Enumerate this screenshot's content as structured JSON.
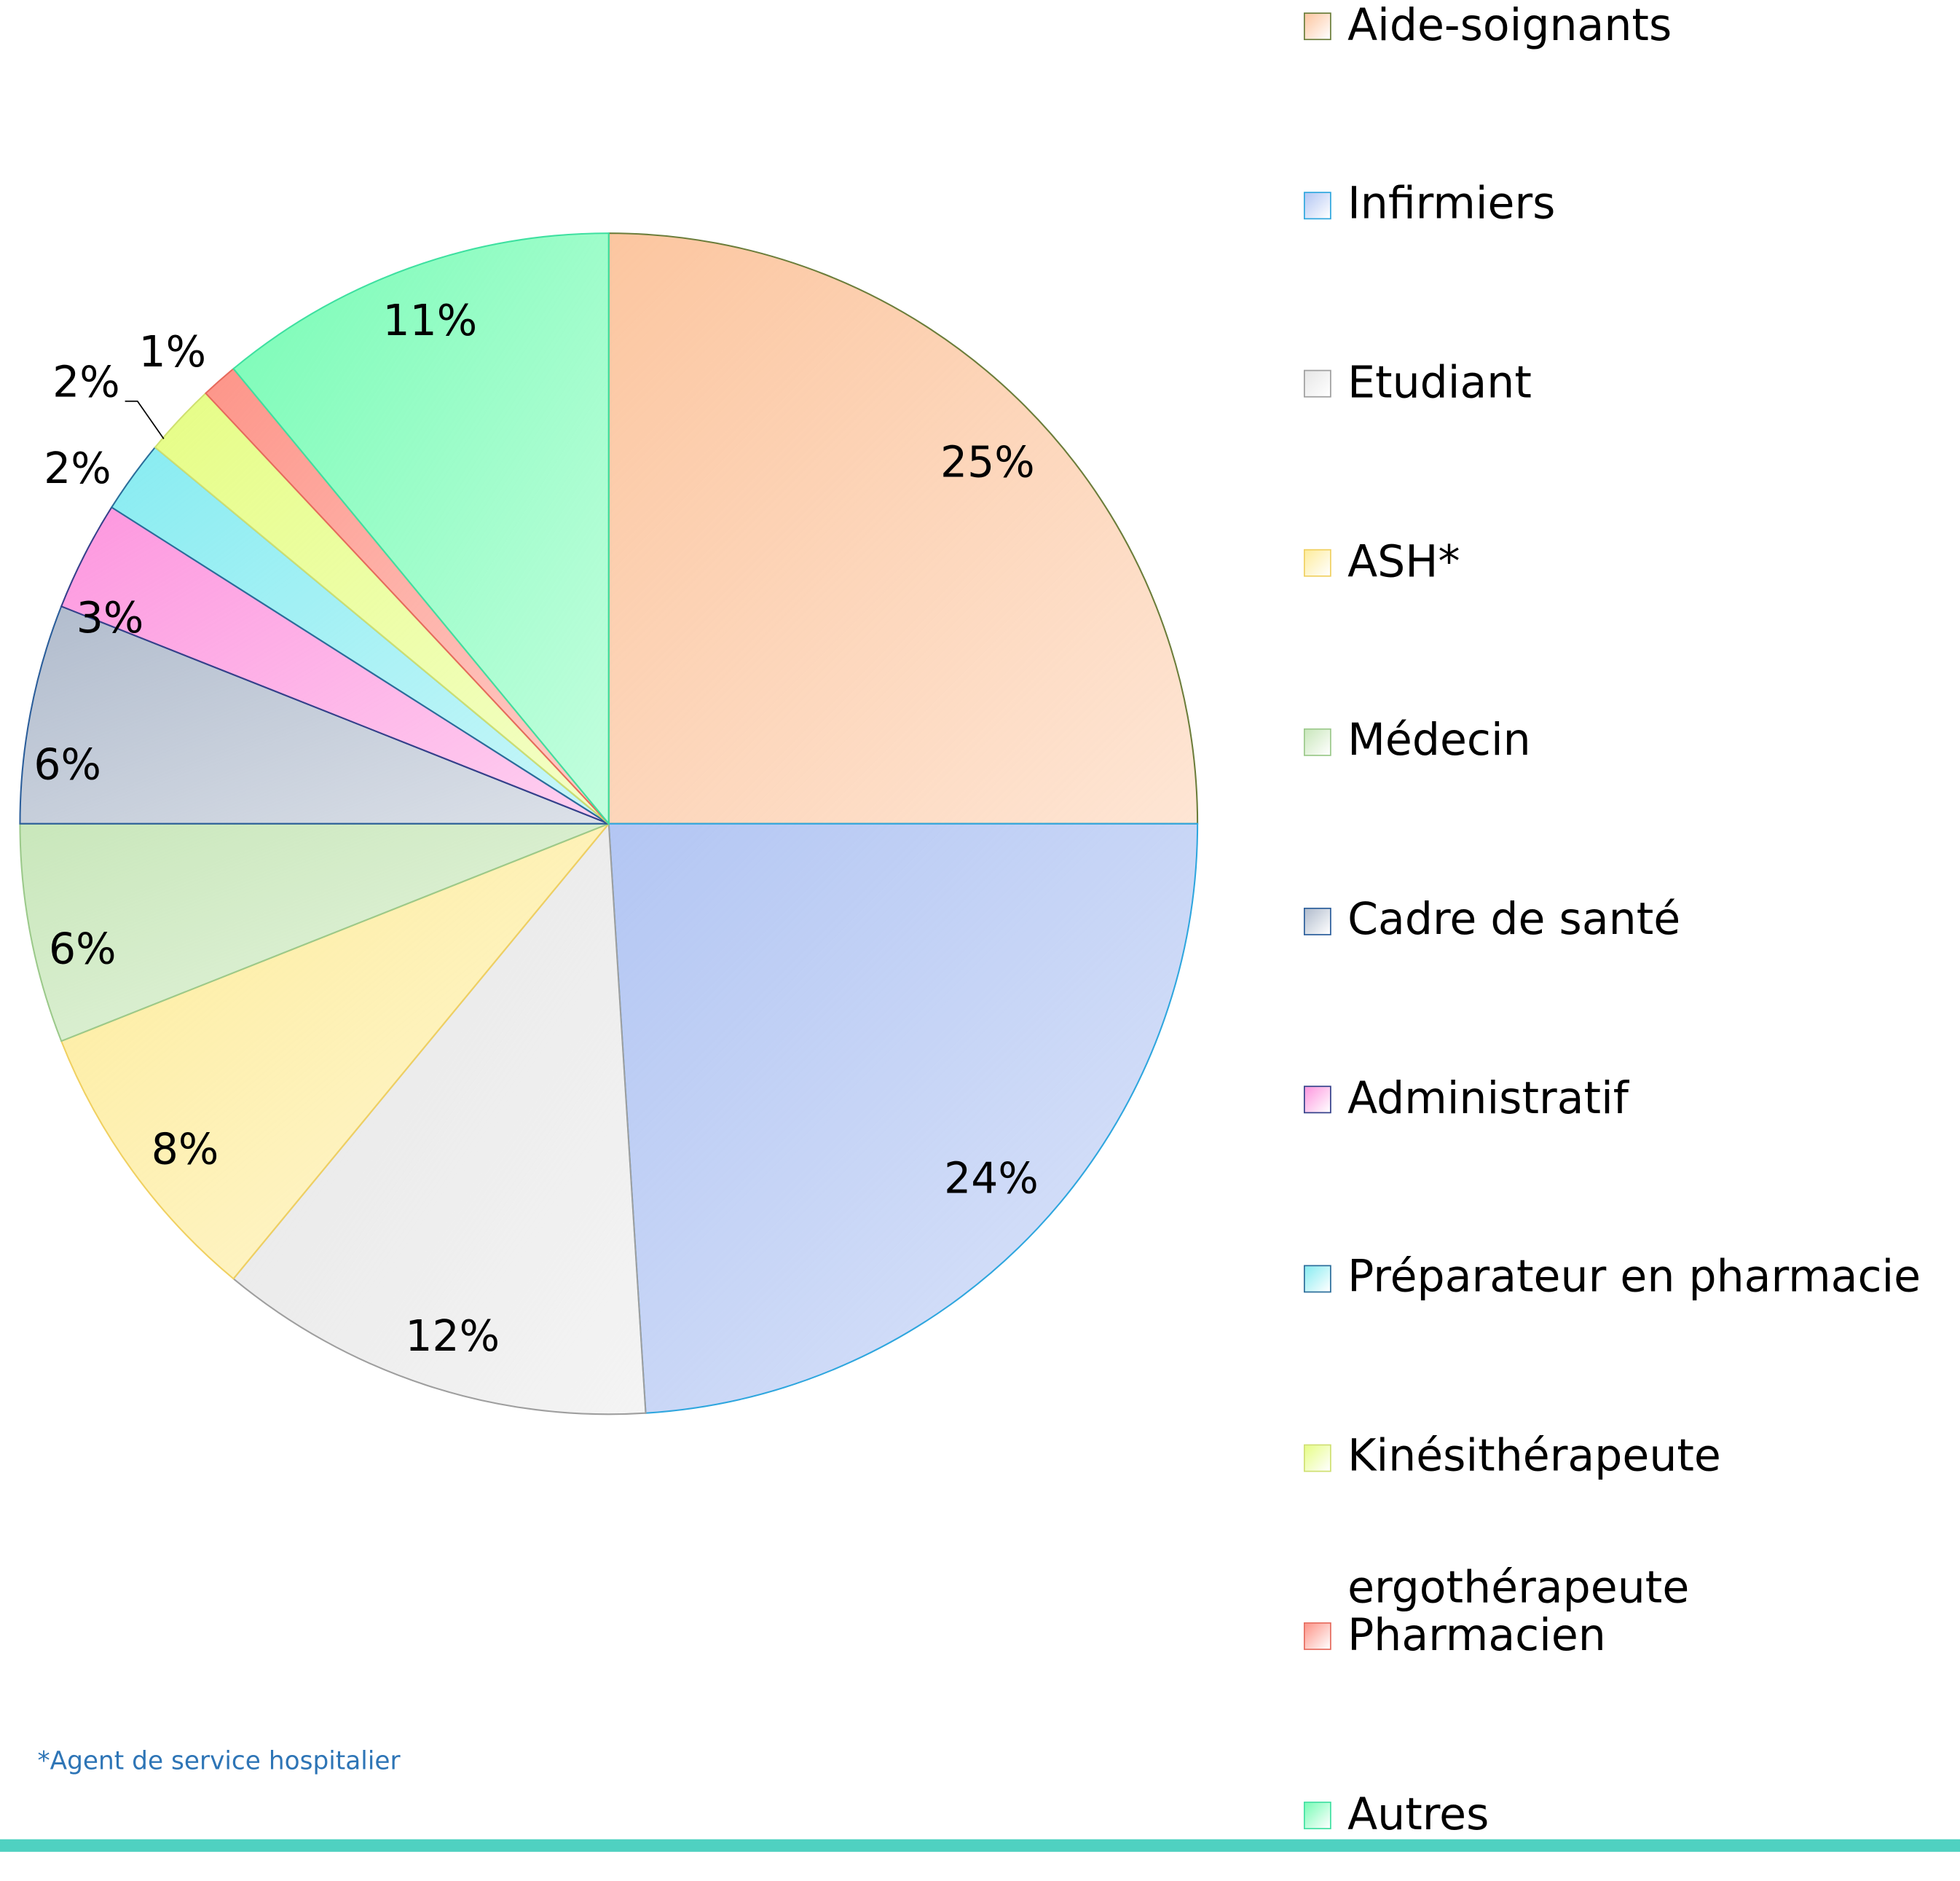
{
  "chart_data": {
    "type": "pie",
    "categories": [
      "Aide-soignants",
      "Infirmiers",
      "Etudiant",
      "ASH*",
      "Médecin",
      "Cadre de santé",
      "Administratif",
      "Préparateur en pharmacie",
      "Kinésithérapeute\nergothérapeute",
      "Pharmacien",
      "Autres"
    ],
    "values": [
      25,
      24,
      12,
      8,
      6,
      6,
      3,
      2,
      2,
      1,
      11
    ],
    "value_labels": [
      "25%",
      "24%",
      "12%",
      "8%",
      "6%",
      "6%",
      "3%",
      "2%",
      "2%",
      "1%",
      "11%"
    ],
    "colors": [
      "#fcc6a0",
      "#b3c6f3",
      "#e6e6e6",
      "#fdec9c",
      "#c9e7bb",
      "#b1bccd",
      "#fd97df",
      "#88ecf1",
      "#e6fd86",
      "#fd9589",
      "#79fcb6"
    ],
    "edge_colors": [
      "#6b7d3a",
      "#2ea6de",
      "#9e9e9e",
      "#f0d060",
      "#9bc98a",
      "#2a5d9a",
      "#34408a",
      "#2a6d9a",
      "#cfe070",
      "#e66a5c",
      "#3ee0a0"
    ],
    "footnote": "*Agent de service hospitalier"
  }
}
